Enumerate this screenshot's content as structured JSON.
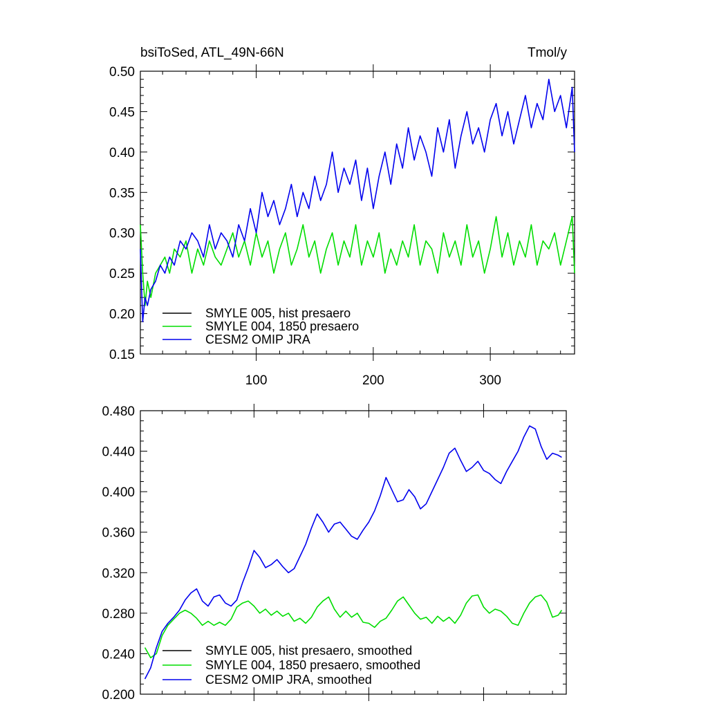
{
  "chart_data": [
    {
      "type": "line",
      "title": "bsiToSed, ATL_49N-66N",
      "units": "Tmol/y",
      "xlabel": "",
      "ylabel": "",
      "xlim": [
        1,
        372
      ],
      "ylim": [
        0.15,
        0.5
      ],
      "y_ticks": [
        "0.15",
        "0.20",
        "0.25",
        "0.30",
        "0.35",
        "0.40",
        "0.45",
        "0.50"
      ],
      "x_ticks": [
        "100",
        "200",
        "300"
      ],
      "legend_position": "bottom-left",
      "series": [
        {
          "name": "SMYLE 005, hist presaero",
          "color": "#000000",
          "x": [],
          "y": []
        },
        {
          "name": "SMYLE 004, 1850 presaero",
          "color": "#00dd00",
          "x": [
            1,
            3,
            5,
            7,
            10,
            14,
            18,
            22,
            26,
            30,
            35,
            40,
            45,
            50,
            55,
            60,
            65,
            70,
            75,
            80,
            85,
            90,
            95,
            100,
            105,
            110,
            115,
            120,
            125,
            130,
            135,
            140,
            145,
            150,
            155,
            160,
            165,
            170,
            175,
            180,
            185,
            190,
            195,
            200,
            205,
            210,
            215,
            220,
            225,
            230,
            235,
            240,
            245,
            250,
            255,
            260,
            265,
            270,
            275,
            280,
            285,
            290,
            295,
            300,
            305,
            310,
            315,
            320,
            325,
            330,
            335,
            340,
            345,
            350,
            355,
            360,
            365,
            370,
            372
          ],
          "y": [
            0.31,
            0.25,
            0.21,
            0.24,
            0.22,
            0.25,
            0.26,
            0.27,
            0.25,
            0.28,
            0.27,
            0.29,
            0.25,
            0.28,
            0.26,
            0.29,
            0.27,
            0.26,
            0.28,
            0.3,
            0.27,
            0.29,
            0.26,
            0.3,
            0.27,
            0.29,
            0.25,
            0.28,
            0.3,
            0.26,
            0.28,
            0.31,
            0.27,
            0.29,
            0.25,
            0.28,
            0.3,
            0.26,
            0.29,
            0.27,
            0.31,
            0.26,
            0.29,
            0.27,
            0.3,
            0.25,
            0.28,
            0.26,
            0.29,
            0.27,
            0.31,
            0.26,
            0.29,
            0.28,
            0.25,
            0.3,
            0.27,
            0.29,
            0.26,
            0.31,
            0.27,
            0.29,
            0.25,
            0.28,
            0.32,
            0.27,
            0.3,
            0.26,
            0.29,
            0.27,
            0.31,
            0.26,
            0.29,
            0.28,
            0.3,
            0.26,
            0.29,
            0.32,
            0.25
          ]
        },
        {
          "name": "CESM2 OMIP JRA",
          "color": "#0000ee",
          "x": [
            1,
            3,
            5,
            7,
            10,
            14,
            18,
            22,
            26,
            30,
            35,
            40,
            45,
            50,
            55,
            60,
            65,
            70,
            75,
            80,
            85,
            90,
            95,
            100,
            105,
            110,
            115,
            120,
            125,
            130,
            135,
            140,
            145,
            150,
            155,
            160,
            165,
            170,
            175,
            180,
            185,
            190,
            195,
            200,
            205,
            210,
            215,
            220,
            225,
            230,
            235,
            240,
            245,
            250,
            255,
            260,
            265,
            270,
            275,
            280,
            285,
            290,
            295,
            300,
            305,
            310,
            315,
            320,
            325,
            330,
            335,
            340,
            345,
            350,
            355,
            360,
            365,
            370,
            372
          ],
          "y": [
            0.28,
            0.19,
            0.22,
            0.21,
            0.23,
            0.24,
            0.26,
            0.25,
            0.27,
            0.26,
            0.29,
            0.28,
            0.3,
            0.29,
            0.27,
            0.31,
            0.28,
            0.3,
            0.29,
            0.27,
            0.31,
            0.29,
            0.33,
            0.3,
            0.35,
            0.32,
            0.34,
            0.31,
            0.33,
            0.36,
            0.32,
            0.35,
            0.33,
            0.37,
            0.34,
            0.36,
            0.4,
            0.35,
            0.38,
            0.36,
            0.39,
            0.34,
            0.38,
            0.33,
            0.37,
            0.4,
            0.36,
            0.41,
            0.38,
            0.43,
            0.39,
            0.42,
            0.4,
            0.37,
            0.43,
            0.4,
            0.44,
            0.38,
            0.42,
            0.45,
            0.41,
            0.43,
            0.4,
            0.44,
            0.46,
            0.42,
            0.45,
            0.41,
            0.44,
            0.47,
            0.43,
            0.46,
            0.44,
            0.49,
            0.45,
            0.47,
            0.43,
            0.48,
            0.4
          ]
        }
      ]
    },
    {
      "type": "line",
      "title": "",
      "xlabel": "",
      "ylabel": "",
      "xlim": [
        1,
        372
      ],
      "ylim": [
        0.2,
        0.48
      ],
      "y_ticks": [
        "0.200",
        "0.240",
        "0.280",
        "0.320",
        "0.360",
        "0.400",
        "0.440",
        "0.480"
      ],
      "x_ticks": [],
      "legend_position": "bottom-left",
      "series": [
        {
          "name": "SMYLE 005, hist presaero, smoothed",
          "color": "#000000",
          "x": [],
          "y": []
        },
        {
          "name": "SMYLE 004, 1850 presaero, smoothed",
          "color": "#00dd00",
          "x": [
            5,
            10,
            15,
            20,
            25,
            30,
            35,
            40,
            45,
            50,
            55,
            60,
            65,
            70,
            75,
            80,
            85,
            90,
            95,
            100,
            105,
            110,
            115,
            120,
            125,
            130,
            135,
            140,
            145,
            150,
            155,
            160,
            165,
            170,
            175,
            180,
            185,
            190,
            195,
            200,
            205,
            210,
            215,
            220,
            225,
            230,
            235,
            240,
            245,
            250,
            255,
            260,
            265,
            270,
            275,
            280,
            285,
            290,
            295,
            300,
            305,
            310,
            315,
            320,
            325,
            330,
            335,
            340,
            345,
            350,
            355,
            360,
            365,
            368
          ],
          "y": [
            0.246,
            0.236,
            0.24,
            0.258,
            0.268,
            0.274,
            0.28,
            0.283,
            0.28,
            0.275,
            0.268,
            0.272,
            0.268,
            0.271,
            0.268,
            0.274,
            0.286,
            0.29,
            0.292,
            0.287,
            0.28,
            0.284,
            0.278,
            0.282,
            0.277,
            0.28,
            0.272,
            0.275,
            0.27,
            0.276,
            0.286,
            0.292,
            0.296,
            0.284,
            0.276,
            0.282,
            0.276,
            0.28,
            0.271,
            0.27,
            0.266,
            0.272,
            0.275,
            0.283,
            0.292,
            0.296,
            0.288,
            0.28,
            0.274,
            0.276,
            0.27,
            0.277,
            0.272,
            0.276,
            0.27,
            0.278,
            0.29,
            0.297,
            0.298,
            0.286,
            0.28,
            0.284,
            0.282,
            0.277,
            0.27,
            0.268,
            0.28,
            0.29,
            0.296,
            0.298,
            0.291,
            0.276,
            0.278,
            0.283
          ]
        },
        {
          "name": "CESM2 OMIP JRA, smoothed",
          "color": "#0000ee",
          "x": [
            5,
            10,
            15,
            20,
            25,
            30,
            35,
            40,
            45,
            50,
            55,
            60,
            65,
            70,
            75,
            80,
            85,
            90,
            95,
            100,
            105,
            110,
            115,
            120,
            125,
            130,
            135,
            140,
            145,
            150,
            155,
            160,
            165,
            170,
            175,
            180,
            185,
            190,
            195,
            200,
            205,
            210,
            215,
            220,
            225,
            230,
            235,
            240,
            245,
            250,
            255,
            260,
            265,
            270,
            275,
            280,
            285,
            290,
            295,
            300,
            305,
            310,
            315,
            320,
            325,
            330,
            335,
            340,
            345,
            350,
            355,
            360,
            365,
            368
          ],
          "y": [
            0.215,
            0.226,
            0.246,
            0.262,
            0.27,
            0.276,
            0.283,
            0.293,
            0.3,
            0.304,
            0.292,
            0.287,
            0.296,
            0.298,
            0.29,
            0.287,
            0.293,
            0.31,
            0.325,
            0.342,
            0.335,
            0.325,
            0.328,
            0.333,
            0.326,
            0.32,
            0.324,
            0.336,
            0.348,
            0.364,
            0.378,
            0.37,
            0.36,
            0.368,
            0.37,
            0.363,
            0.356,
            0.353,
            0.362,
            0.37,
            0.381,
            0.396,
            0.414,
            0.402,
            0.39,
            0.392,
            0.402,
            0.395,
            0.383,
            0.388,
            0.4,
            0.412,
            0.424,
            0.438,
            0.443,
            0.431,
            0.42,
            0.424,
            0.43,
            0.421,
            0.418,
            0.412,
            0.408,
            0.42,
            0.43,
            0.44,
            0.454,
            0.465,
            0.462,
            0.445,
            0.432,
            0.438,
            0.436,
            0.434
          ]
        }
      ]
    }
  ]
}
